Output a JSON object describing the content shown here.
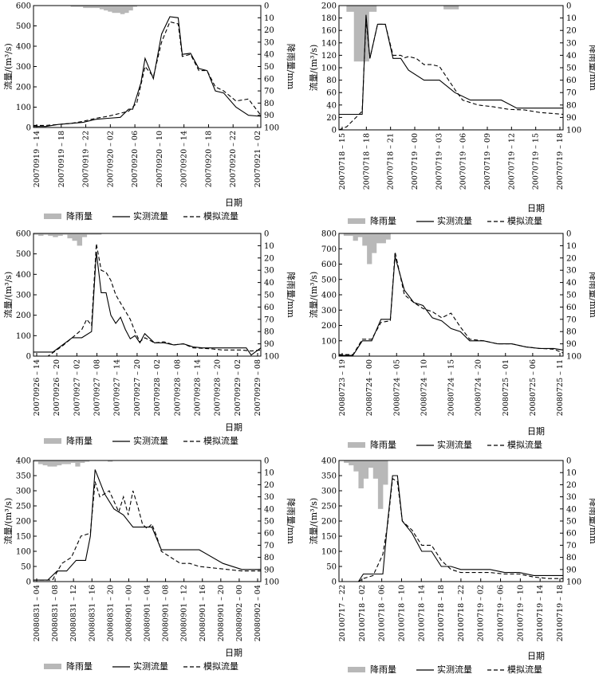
{
  "common": {
    "xlabel": "日期",
    "ylabel_left": "流量/(m³/s)",
    "ylabel_right": "降雨量/mm",
    "legend": [
      "降雨量",
      "实测流量",
      "模拟流量"
    ],
    "colors": {
      "rain": "#b8b8b8",
      "observed": "#000000",
      "simulated": "#000000"
    }
  },
  "chart_data": [
    {
      "type": "line",
      "title": "",
      "xlabel": "日期",
      "ylabel_left": "流量/(m³/s)",
      "ylabel_right": "降雨量/mm",
      "ylim_left": [
        0,
        600
      ],
      "yticks_left": [
        0,
        100,
        200,
        300,
        400,
        500,
        600
      ],
      "ylim_right": [
        0,
        100
      ],
      "yticks_right": [
        0,
        10,
        20,
        30,
        40,
        50,
        60,
        70,
        80,
        90,
        100
      ],
      "xticks": [
        "20070919-14",
        "20070919-18",
        "20070919-22",
        "20070920-02",
        "20070920-06",
        "20070920-10",
        "20070920-14",
        "20070920-18",
        "20070920-22",
        "20070921-02"
      ],
      "legend_placement": "bottom",
      "rainfall": [
        0,
        0,
        0,
        0,
        0,
        0,
        0,
        0,
        0,
        1,
        1,
        1,
        2,
        2,
        2,
        2,
        3,
        4,
        5,
        6,
        6,
        7,
        6,
        4,
        1,
        0,
        0,
        0,
        0,
        0,
        0,
        0,
        0,
        0,
        0,
        0,
        0,
        0,
        0,
        0,
        0,
        0,
        0,
        0,
        0,
        0,
        0,
        0,
        0,
        0,
        0,
        0,
        0,
        0,
        0
      ],
      "series": [
        {
          "name": "实测流量",
          "style": "solid",
          "x": [
            0,
            3,
            6,
            9,
            12,
            15,
            18,
            21,
            23,
            24,
            26,
            27,
            29,
            31,
            33,
            35,
            36,
            38,
            40,
            42,
            44,
            46,
            49,
            52,
            55
          ],
          "y": [
            5,
            5,
            15,
            20,
            25,
            40,
            45,
            50,
            90,
            90,
            220,
            340,
            240,
            460,
            545,
            540,
            360,
            365,
            290,
            280,
            180,
            170,
            100,
            60,
            55
          ]
        },
        {
          "name": "模拟流量",
          "style": "dashed",
          "x": [
            0,
            3,
            6,
            9,
            12,
            15,
            18,
            21,
            23,
            25,
            27,
            29,
            31,
            33,
            35,
            36,
            38,
            40,
            42,
            44,
            46,
            49,
            52,
            55
          ],
          "y": [
            10,
            10,
            15,
            20,
            30,
            45,
            55,
            70,
            80,
            120,
            300,
            250,
            420,
            520,
            510,
            350,
            360,
            280,
            280,
            200,
            180,
            130,
            140,
            60
          ]
        }
      ]
    },
    {
      "type": "line",
      "title": "",
      "xlabel": "日期",
      "ylabel_left": "流量/(m³/s)",
      "ylabel_right": "降雨量/mm",
      "ylim_left": [
        0,
        200
      ],
      "yticks_left": [
        0,
        20,
        40,
        60,
        80,
        100,
        120,
        140,
        160,
        180,
        200
      ],
      "ylim_right": [
        0,
        100
      ],
      "yticks_right": [
        0,
        10,
        20,
        30,
        40,
        50,
        60,
        70,
        80,
        90,
        100
      ],
      "xticks": [
        "20070718-15",
        "20070718-18",
        "20070718-21",
        "20070719-00",
        "20070719-03",
        "20070719-06",
        "20070719-09",
        "20070719-12",
        "20070719-15",
        "20070719-18"
      ],
      "legend_placement": "bottom",
      "rainfall": [
        0,
        5,
        45,
        45,
        5,
        0,
        0,
        0,
        0,
        0,
        0,
        0,
        0,
        0,
        3,
        3,
        0,
        0,
        0,
        0,
        0,
        0,
        0,
        0,
        0,
        0,
        0,
        0,
        0,
        0
      ],
      "series": [
        {
          "name": "实测流量",
          "style": "solid",
          "x": [
            0,
            3,
            3.5,
            4,
            5,
            6,
            7,
            8,
            9,
            11,
            13,
            15,
            17,
            19,
            21,
            23,
            25,
            27,
            29
          ],
          "y": [
            25,
            25,
            185,
            115,
            170,
            170,
            115,
            115,
            96,
            80,
            80,
            60,
            48,
            48,
            48,
            35,
            35,
            35,
            35
          ]
        },
        {
          "name": "模拟流量",
          "style": "dashed",
          "x": [
            0,
            1,
            3,
            3.5,
            4,
            5,
            6,
            7,
            8,
            8.5,
            9,
            10,
            11,
            12,
            13,
            15,
            16,
            18,
            20,
            22,
            24,
            26,
            29
          ],
          "y": [
            0,
            5,
            30,
            178,
            115,
            170,
            170,
            120,
            120,
            116,
            118,
            115,
            105,
            105,
            102,
            65,
            48,
            40,
            37,
            33,
            32,
            28,
            25
          ]
        }
      ]
    },
    {
      "type": "line",
      "title": "",
      "xlabel": "日期",
      "ylabel_left": "流量/(m³/s)",
      "ylabel_right": "降雨量/mm",
      "ylim_left": [
        0,
        600
      ],
      "yticks_left": [
        0,
        100,
        200,
        300,
        400,
        500,
        600
      ],
      "ylim_right": [
        0,
        100
      ],
      "yticks_right": [
        0,
        10,
        20,
        30,
        40,
        50,
        60,
        70,
        80,
        90,
        100
      ],
      "xticks": [
        "20070926-14",
        "20070926-20",
        "20070927-02",
        "20070927-08",
        "20070927-14",
        "20070927-20",
        "20070928-02",
        "20070928-08",
        "20070928-14",
        "20070928-20",
        "20070929-02",
        "20070929-08"
      ],
      "legend_placement": "bottom",
      "rainfall": [
        1,
        2,
        1,
        2,
        3,
        2,
        1,
        4,
        6,
        10,
        3,
        1,
        1,
        1,
        0,
        0,
        0,
        0,
        0,
        0,
        0,
        0,
        0,
        0,
        0,
        0,
        0,
        0,
        0,
        0,
        0,
        0,
        0,
        0,
        0,
        0,
        0,
        0,
        0,
        0,
        0,
        0,
        0,
        0,
        0,
        0,
        0
      ],
      "series": [
        {
          "name": "实测流量",
          "style": "solid",
          "x": [
            0,
            4,
            8,
            10,
            12,
            13,
            14,
            15,
            16,
            17,
            18,
            19,
            20,
            21,
            22,
            23,
            25,
            27,
            29,
            31,
            33,
            35,
            37,
            39,
            41,
            44,
            45,
            47
          ],
          "y": [
            20,
            20,
            90,
            90,
            120,
            510,
            310,
            310,
            200,
            160,
            190,
            130,
            85,
            100,
            65,
            110,
            65,
            65,
            55,
            60,
            45,
            40,
            40,
            40,
            40,
            40,
            5,
            40
          ]
        },
        {
          "name": "模拟流量",
          "style": "dashed",
          "x": [
            0,
            3,
            6,
            8,
            9,
            10,
            11,
            12,
            13,
            14,
            15,
            16,
            17,
            18,
            19,
            20,
            21,
            22,
            23,
            25,
            27,
            29,
            31,
            33,
            35,
            37,
            39,
            41,
            43,
            45,
            47
          ],
          "y": [
            0,
            0,
            50,
            90,
            110,
            130,
            180,
            150,
            550,
            420,
            410,
            370,
            300,
            260,
            220,
            180,
            120,
            70,
            90,
            65,
            70,
            55,
            60,
            40,
            38,
            35,
            30,
            30,
            30,
            25,
            30
          ]
        }
      ]
    },
    {
      "type": "line",
      "title": "",
      "xlabel": "日期",
      "ylabel_left": "流量/(m³/s)",
      "ylabel_right": "降雨量/mm",
      "ylim_left": [
        0,
        800
      ],
      "yticks_left": [
        0,
        100,
        200,
        300,
        400,
        500,
        600,
        700,
        800
      ],
      "ylim_right": [
        0,
        100
      ],
      "yticks_right": [
        0,
        10,
        20,
        30,
        40,
        50,
        60,
        70,
        80,
        90,
        100
      ],
      "xticks": [
        "20080723-19",
        "20080724-00",
        "20080724-05",
        "20080724-10",
        "20080724-15",
        "20080724-20",
        "20080725-01",
        "20080725-06",
        "20080725-11"
      ],
      "legend_placement": "bottom",
      "rainfall": [
        0,
        2,
        2,
        6,
        3,
        10,
        25,
        16,
        8,
        8,
        5,
        0,
        0,
        0,
        0,
        0,
        0,
        0,
        0,
        0,
        0,
        0,
        0,
        0,
        0,
        0,
        0,
        0,
        0,
        0,
        0,
        0,
        0,
        0,
        0,
        0,
        0,
        0,
        0,
        0,
        0,
        0,
        0,
        0,
        0,
        0,
        0,
        0
      ],
      "series": [
        {
          "name": "实测流量",
          "style": "solid",
          "x": [
            0,
            3,
            5,
            7,
            9,
            11,
            12,
            14,
            16,
            18,
            20,
            22,
            24,
            26,
            28,
            31,
            34,
            37,
            40,
            43,
            46,
            48
          ],
          "y": [
            5,
            5,
            100,
            100,
            240,
            240,
            650,
            430,
            350,
            330,
            250,
            230,
            180,
            160,
            100,
            100,
            80,
            80,
            60,
            50,
            50,
            40
          ]
        },
        {
          "name": "模拟流量",
          "style": "dashed",
          "x": [
            0,
            3,
            5,
            7,
            9,
            11,
            12,
            14,
            16,
            18,
            20,
            22,
            24,
            26,
            28,
            31,
            34,
            37,
            40,
            43,
            46,
            48
          ],
          "y": [
            10,
            10,
            110,
            110,
            220,
            230,
            680,
            400,
            350,
            310,
            290,
            250,
            280,
            190,
            110,
            100,
            80,
            80,
            60,
            50,
            45,
            20
          ]
        }
      ]
    },
    {
      "type": "line",
      "title": "",
      "xlabel": "日期",
      "ylabel_left": "流量/(m³/s)",
      "ylabel_right": "降雨量/mm",
      "ylim_left": [
        0,
        400
      ],
      "yticks_left": [
        0,
        50,
        100,
        150,
        200,
        250,
        300,
        350,
        400
      ],
      "ylim_right": [
        0,
        100
      ],
      "yticks_right": [
        0,
        10,
        20,
        30,
        40,
        50,
        60,
        70,
        80,
        90,
        100
      ],
      "xticks": [
        "20080831-04",
        "20080831-08",
        "20080831-12",
        "20080831-16",
        "20080831-20",
        "20080901-00",
        "20080901-04",
        "20080901-08",
        "20080901-12",
        "20080901-16",
        "20080901-20",
        "20080902-00",
        "20080902-04"
      ],
      "legend_placement": "bottom",
      "rainfall": [
        1,
        3,
        4,
        5,
        5,
        4,
        3,
        3,
        2,
        5,
        2,
        1,
        0,
        0,
        0,
        0,
        1,
        0,
        0,
        0,
        0,
        0,
        0,
        0,
        0,
        0,
        0,
        0,
        0,
        0,
        0,
        0,
        0,
        0,
        0,
        0,
        0,
        0,
        0,
        0,
        0,
        0,
        0,
        0,
        0,
        0,
        0,
        0,
        0
      ],
      "series": [
        {
          "name": "实测流量",
          "style": "solid",
          "x": [
            0,
            3,
            5,
            7,
            9,
            11,
            12,
            13,
            15,
            17,
            19,
            21,
            23,
            25,
            27,
            29,
            31,
            35,
            40,
            44,
            48
          ],
          "y": [
            5,
            5,
            35,
            35,
            70,
            70,
            150,
            370,
            290,
            240,
            220,
            180,
            180,
            180,
            105,
            105,
            105,
            105,
            60,
            40,
            40
          ]
        },
        {
          "name": "模拟流量",
          "style": "dashed",
          "x": [
            0,
            4,
            6,
            8,
            10,
            12,
            13,
            14,
            16,
            18,
            19,
            20,
            21,
            22,
            23,
            24,
            25,
            26,
            27,
            29,
            31,
            33,
            35,
            38,
            41,
            44,
            48
          ],
          "y": [
            5,
            5,
            60,
            80,
            150,
            160,
            330,
            280,
            300,
            230,
            280,
            220,
            300,
            250,
            190,
            175,
            190,
            150,
            100,
            80,
            60,
            60,
            50,
            45,
            40,
            35,
            35
          ]
        }
      ]
    },
    {
      "type": "line",
      "title": "",
      "xlabel": "日期",
      "ylabel_left": "流量/(m³/s)",
      "ylabel_right": "降雨量/mm",
      "ylim_left": [
        0,
        400
      ],
      "yticks_left": [
        0,
        50,
        100,
        150,
        200,
        250,
        300,
        350,
        400
      ],
      "ylim_right": [
        0,
        100
      ],
      "yticks_right": [
        0,
        10,
        20,
        30,
        40,
        50,
        60,
        70,
        80,
        90,
        100
      ],
      "xticks": [
        "20100717-22",
        "20100718-02",
        "20100718-06",
        "20100718-10",
        "20100718-14",
        "20100718-18",
        "20100718-22",
        "20100719-02",
        "20100719-06",
        "20100719-10",
        "20100719-14",
        "20100719-18"
      ],
      "legend_placement": "bottom",
      "rainfall": [
        0,
        2,
        4,
        9,
        23,
        15,
        6,
        15,
        40,
        20,
        0,
        0,
        0,
        0,
        0,
        0,
        0,
        0,
        0,
        0,
        0,
        0,
        0,
        0,
        0,
        0,
        0,
        0,
        0,
        0,
        0,
        0,
        0,
        0,
        0,
        0,
        0,
        0,
        0,
        0,
        0,
        0,
        0,
        0,
        0,
        0
      ],
      "series": [
        {
          "name": "实测流量",
          "style": "solid",
          "x": [
            0,
            4,
            5,
            7,
            9,
            10,
            11,
            12,
            13,
            15,
            17,
            19,
            21,
            23,
            25,
            28,
            31,
            34,
            37,
            40,
            43,
            46
          ],
          "y": [
            0,
            0,
            25,
            25,
            25,
            200,
            350,
            350,
            200,
            160,
            100,
            100,
            50,
            50,
            40,
            40,
            40,
            30,
            30,
            20,
            20,
            20
          ]
        },
        {
          "name": "模拟流量",
          "style": "dashed",
          "x": [
            0,
            4,
            5,
            7,
            9,
            10,
            11,
            12,
            13,
            15,
            17,
            19,
            21,
            23,
            25,
            28,
            31,
            34,
            37,
            40,
            43,
            46
          ],
          "y": [
            0,
            0,
            10,
            20,
            90,
            190,
            340,
            330,
            200,
            170,
            120,
            120,
            70,
            40,
            30,
            30,
            30,
            25,
            25,
            15,
            10,
            10
          ]
        }
      ]
    }
  ]
}
